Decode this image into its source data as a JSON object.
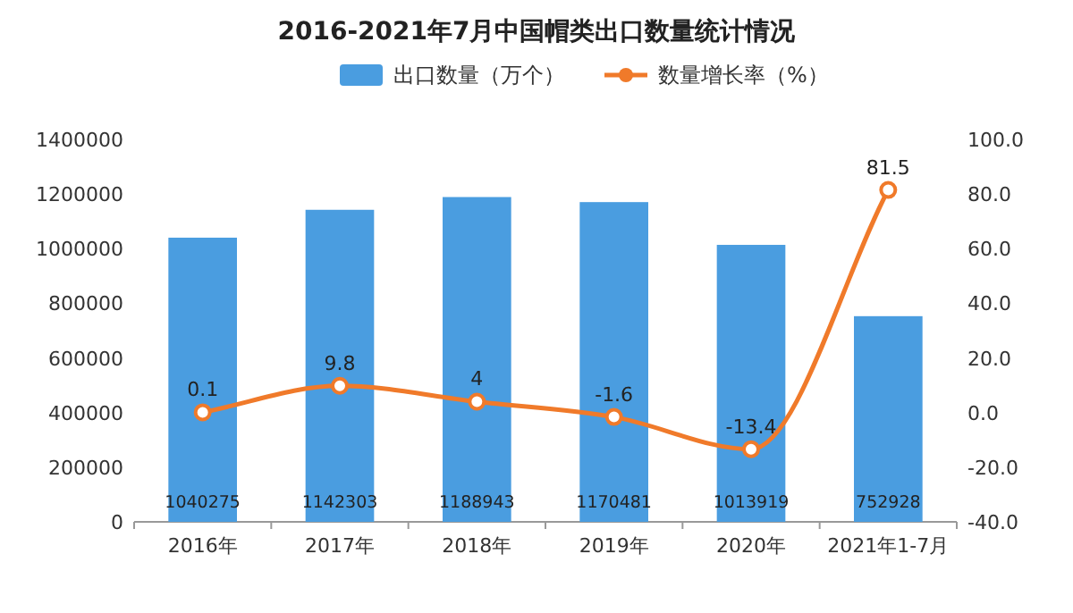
{
  "chart_data": {
    "type": "bar",
    "title": "2016-2021年7月中国帽类出口数量统计情况",
    "categories": [
      "2016年",
      "2017年",
      "2018年",
      "2019年",
      "2020年",
      "2021年1-7月"
    ],
    "series": [
      {
        "name": "出口数量（万个）",
        "color": "#4a9de0",
        "values": [
          1040275,
          1142303,
          1188943,
          1170481,
          1013919,
          752928
        ],
        "data_labels": true
      },
      {
        "name": "数量增长率（%）",
        "type": "line",
        "axis": "y2",
        "color": "#f07a2a",
        "marker": "circle",
        "values": [
          0.1,
          9.8,
          4,
          -1.6,
          -13.4,
          81.5
        ],
        "data_labels": true
      }
    ],
    "ylim": [
      0,
      1400000
    ],
    "yticks": [
      0,
      200000,
      400000,
      600000,
      800000,
      1000000,
      1200000,
      1400000
    ],
    "y2lim": [
      -40,
      100
    ],
    "y2ticks": [
      {
        "value": -40,
        "label": "-40.0"
      },
      {
        "value": -20,
        "label": "-20.0"
      },
      {
        "value": 0,
        "label": "0.0"
      },
      {
        "value": 20,
        "label": "20.0"
      },
      {
        "value": 40,
        "label": "40.0"
      },
      {
        "value": 60,
        "label": "60.0"
      },
      {
        "value": 80,
        "label": "80.0"
      },
      {
        "value": 100,
        "label": "100.0"
      }
    ],
    "legend": "top"
  }
}
